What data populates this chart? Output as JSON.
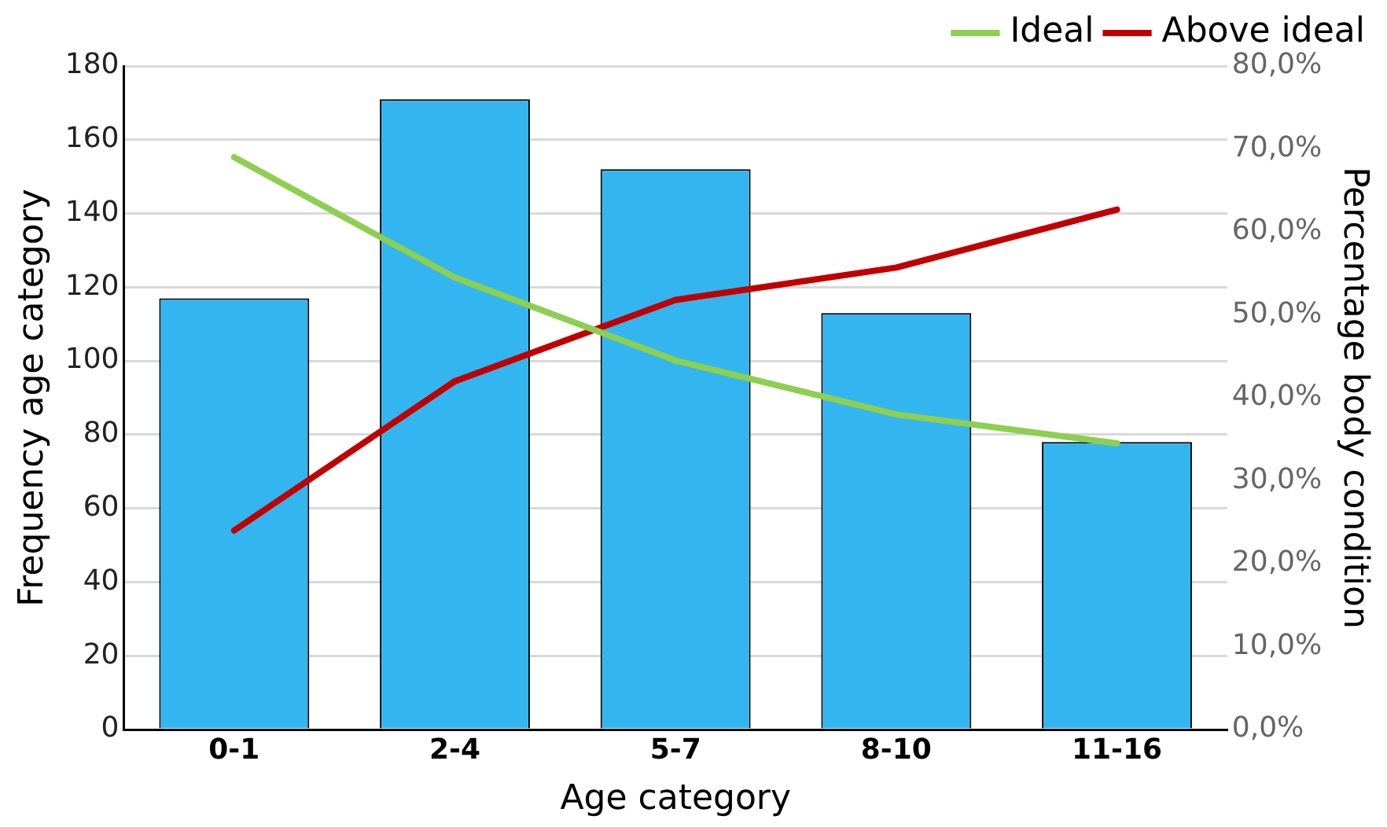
{
  "chart_data": {
    "type": "bar",
    "xlabel": "Age category",
    "ylabel": "Frequency age category",
    "y2label": "Percentage body condition",
    "categories": [
      "0-1",
      "2-4",
      "5-7",
      "8-10",
      "11-16"
    ],
    "series": [
      {
        "color": "#33b5f0",
        "values": [
          117,
          171,
          152,
          113,
          78
        ]
      },
      {
        "type": "line",
        "name": "Ideal",
        "color": "#8dcf50",
        "axis": "y2",
        "values": [
          69.0,
          54.5,
          44.5,
          38.0,
          34.5
        ]
      },
      {
        "type": "line",
        "name": "Above ideal",
        "color": "#c00000",
        "axis": "y2",
        "values": [
          24.0,
          42.0,
          51.8,
          55.7,
          62.7
        ]
      }
    ],
    "ylim": [
      0,
      180
    ],
    "yticks": [
      0,
      20,
      40,
      60,
      80,
      100,
      120,
      140,
      160,
      180
    ],
    "y2lim": [
      0,
      80
    ],
    "y2ticks": [
      {
        "value": 0,
        "label": "0,0%"
      },
      {
        "value": 10,
        "label": "10,0%"
      },
      {
        "value": 20,
        "label": "20,0%"
      },
      {
        "value": 30,
        "label": "30,0%"
      },
      {
        "value": 40,
        "label": "40,0%"
      },
      {
        "value": 50,
        "label": "50,0%"
      },
      {
        "value": 60,
        "label": "60,0%"
      },
      {
        "value": 70,
        "label": "70,0%"
      },
      {
        "value": 80,
        "label": "80,0%"
      }
    ],
    "grid": "y",
    "legend": "top right",
    "marker": "none",
    "line_style": "solid"
  }
}
